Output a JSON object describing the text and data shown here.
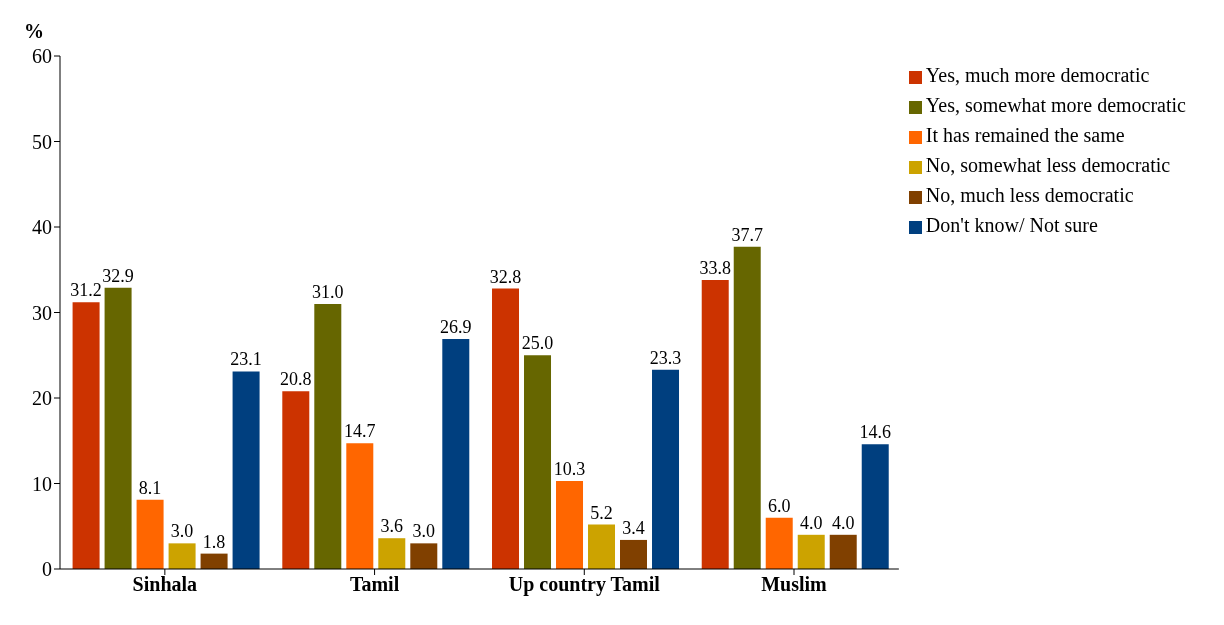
{
  "chart_data": {
    "type": "bar",
    "ylabel": "%",
    "categories": [
      "Sinhala",
      "Tamil",
      "Up country Tamil",
      "Muslim"
    ],
    "series": [
      {
        "name": "Yes, much more democratic",
        "color": "#cc3300",
        "values": [
          31.2,
          20.8,
          32.8,
          33.8
        ]
      },
      {
        "name": "Yes, somewhat more democratic",
        "color": "#666600",
        "values": [
          32.9,
          31.0,
          25.0,
          37.7
        ]
      },
      {
        "name": "It has remained the same",
        "color": "#ff6600",
        "values": [
          8.1,
          14.7,
          10.3,
          6.0
        ]
      },
      {
        "name": "No, somewhat less democratic",
        "color": "#cca300",
        "values": [
          3.0,
          3.6,
          5.2,
          4.0
        ]
      },
      {
        "name": "No, much less democratic",
        "color": "#804000",
        "values": [
          1.8,
          3.0,
          3.4,
          4.0
        ]
      },
      {
        "name": "Don't know/ Not sure",
        "color": "#003f7f",
        "values": [
          23.1,
          26.9,
          23.3,
          14.6
        ]
      }
    ],
    "ylim": [
      0,
      60
    ],
    "yticks": [
      0,
      10,
      20,
      30,
      40,
      50,
      60
    ],
    "grid": false,
    "legend": "top right",
    "value_labels": [
      [
        "31.2",
        "20.8",
        "32.8",
        "33.8"
      ],
      [
        "32.9",
        "31.0",
        "25.0",
        "37.7"
      ],
      [
        "8.1",
        "14.7",
        "10.3",
        "6.0"
      ],
      [
        "3.0",
        "3.6",
        "5.2",
        "4.0"
      ],
      [
        "1.8",
        "3.0",
        "3.4",
        "4.0"
      ],
      [
        "23.1",
        "26.9",
        "23.3",
        "14.6"
      ]
    ]
  }
}
